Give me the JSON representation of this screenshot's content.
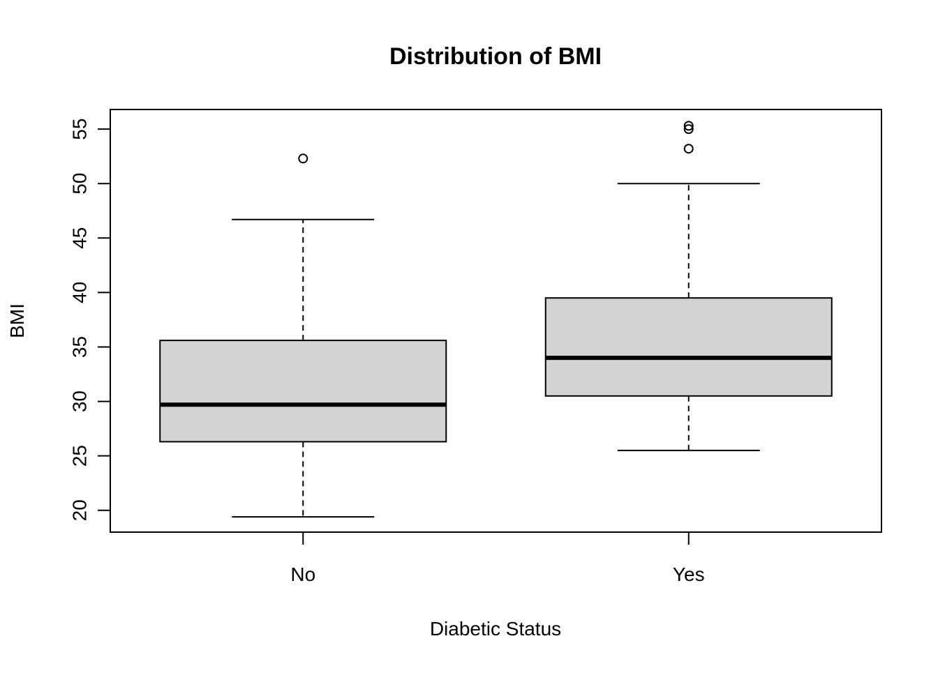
{
  "chart_data": {
    "type": "boxplot",
    "title": "Distribution of BMI",
    "xlabel": "Diabetic Status",
    "ylabel": "BMI",
    "categories": [
      "No",
      "Yes"
    ],
    "ylim": [
      18.0,
      56.8
    ],
    "yticks": [
      20,
      25,
      30,
      35,
      40,
      45,
      50,
      55
    ],
    "ytick_labels": [
      "20",
      "25",
      "30",
      "35",
      "40",
      "45",
      "50",
      "55"
    ],
    "grid": false,
    "legend": "none",
    "colors": {
      "box_fill": "#d3d3d3",
      "stroke": "#000000",
      "background": "#ffffff"
    },
    "boxes": [
      {
        "name": "No",
        "whisker_low": 19.4,
        "q1": 26.3,
        "median": 29.7,
        "q3": 35.6,
        "whisker_high": 46.7,
        "outliers": [
          52.3
        ]
      },
      {
        "name": "Yes",
        "whisker_low": 25.5,
        "q1": 30.5,
        "median": 34.0,
        "q3": 39.5,
        "whisker_high": 50.0,
        "outliers": [
          53.2,
          55.0,
          55.3
        ]
      }
    ]
  }
}
